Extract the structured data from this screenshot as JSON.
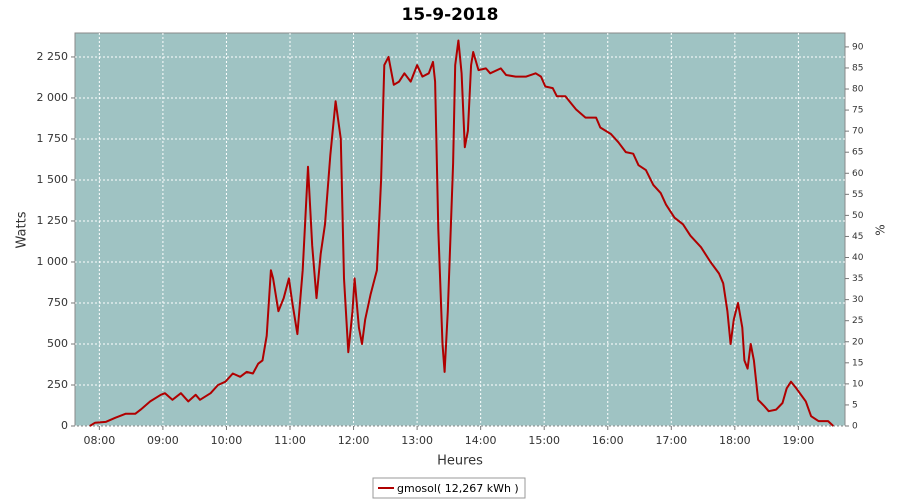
{
  "chart_data": {
    "type": "line",
    "title": "15-9-2018",
    "x_label": "Heures",
    "y_label": "Watts",
    "y2_label": "%",
    "x": [
      471,
      476,
      486,
      495,
      505,
      514,
      519,
      528,
      538,
      542,
      549,
      557,
      564,
      571,
      575,
      585,
      592,
      599,
      606,
      613,
      619,
      625,
      630,
      634,
      638,
      642,
      644,
      649,
      654,
      659,
      662,
      667,
      672,
      677,
      681,
      685,
      689,
      693,
      698,
      703,
      708,
      711,
      715,
      719,
      721,
      725,
      728,
      731,
      736,
      742,
      746,
      749,
      753,
      758,
      763,
      768,
      774,
      780,
      785,
      791,
      795,
      797,
      800,
      804,
      806,
      809,
      814,
      816,
      819,
      822,
      825,
      828,
      831,
      833,
      838,
      845,
      849,
      859,
      864,
      873,
      883,
      892,
      897,
      901,
      908,
      912,
      920,
      925,
      930,
      939,
      949,
      953,
      963,
      970,
      977,
      984,
      989,
      996,
      1003,
      1010,
      1015,
      1023,
      1031,
      1038,
      1048,
      1057,
      1065,
      1069,
      1073,
      1076,
      1079,
      1083,
      1087,
      1089,
      1092,
      1095,
      1098,
      1102,
      1105,
      1108,
      1112,
      1119,
      1125,
      1129,
      1133,
      1138,
      1147,
      1152,
      1159,
      1168,
      1173
    ],
    "series": [
      {
        "name": "gmosol( 12,267 kWh )",
        "color": "#b00000",
        "values": [
          0,
          20,
          25,
          50,
          75,
          75,
          100,
          150,
          190,
          200,
          160,
          200,
          150,
          190,
          160,
          200,
          250,
          270,
          320,
          300,
          330,
          320,
          380,
          400,
          550,
          950,
          900,
          700,
          780,
          900,
          760,
          560,
          950,
          1580,
          1100,
          780,
          1050,
          1230,
          1650,
          1980,
          1750,
          900,
          450,
          700,
          900,
          600,
          500,
          650,
          800,
          950,
          1500,
          2200,
          2250,
          2080,
          2100,
          2150,
          2100,
          2200,
          2130,
          2150,
          2220,
          2100,
          1200,
          500,
          330,
          700,
          1600,
          2200,
          2350,
          2150,
          1700,
          1800,
          2200,
          2280,
          2170,
          2180,
          2150,
          2180,
          2140,
          2130,
          2130,
          2150,
          2130,
          2070,
          2060,
          2010,
          2010,
          1970,
          1930,
          1880,
          1880,
          1820,
          1780,
          1730,
          1670,
          1660,
          1590,
          1560,
          1470,
          1420,
          1350,
          1270,
          1230,
          1160,
          1090,
          1000,
          930,
          870,
          700,
          500,
          650,
          750,
          600,
          400,
          350,
          500,
          400,
          160,
          140,
          120,
          90,
          100,
          140,
          230,
          270,
          230,
          150,
          60,
          30,
          30,
          0
        ]
      }
    ],
    "xlim": [
      457,
      1184
    ],
    "xticks": [
      {
        "value": 480,
        "label": "08:00"
      },
      {
        "value": 540,
        "label": "09:00"
      },
      {
        "value": 600,
        "label": "10:00"
      },
      {
        "value": 660,
        "label": "11:00"
      },
      {
        "value": 720,
        "label": "12:00"
      },
      {
        "value": 780,
        "label": "13:00"
      },
      {
        "value": 840,
        "label": "14:00"
      },
      {
        "value": 900,
        "label": "15:00"
      },
      {
        "value": 960,
        "label": "16:00"
      },
      {
        "value": 1020,
        "label": "17:00"
      },
      {
        "value": 1080,
        "label": "18:00"
      },
      {
        "value": 1140,
        "label": "19:00"
      }
    ],
    "ylim": [
      0,
      2396
    ],
    "yticks": [
      0,
      250,
      500,
      750,
      {
        "value": 1000,
        "label": "1 000"
      },
      {
        "value": 1250,
        "label": "1 250"
      },
      {
        "value": 1500,
        "label": "1 500"
      },
      {
        "value": 1750,
        "label": "1 750"
      },
      {
        "value": 2000,
        "label": "2 000"
      },
      {
        "value": 2250,
        "label": "2 250"
      }
    ],
    "y2lim": [
      0,
      93.3
    ],
    "y2ticks": [
      0,
      5,
      10,
      15,
      20,
      25,
      30,
      35,
      40,
      45,
      50,
      55,
      60,
      65,
      70,
      75,
      80,
      85,
      90
    ],
    "grid": true,
    "plot_background": "#9fc3c3"
  }
}
